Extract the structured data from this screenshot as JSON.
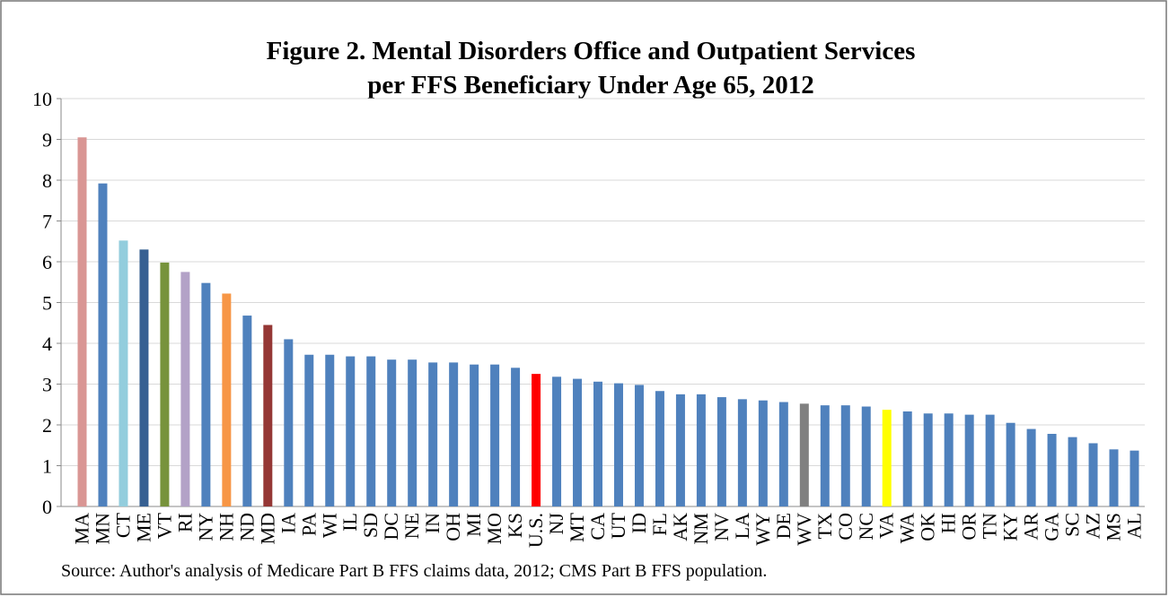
{
  "chart_data": {
    "type": "bar",
    "title": [
      "Figure 2. Mental Disorders Office and Outpatient Services",
      "per FFS Beneficiary Under Age 65, 2012"
    ],
    "source": "Source: Author's analysis of Medicare Part B FFS claims data, 2012; CMS Part B FFS population.",
    "categories": [
      "MA",
      "MN",
      "CT",
      "ME",
      "VT",
      "RI",
      "NY",
      "NH",
      "ND",
      "MD",
      "IA",
      "PA",
      "WI",
      "IL",
      "SD",
      "DC",
      "NE",
      "IN",
      "OH",
      "MI",
      "MO",
      "KS",
      "U.S.",
      "NJ",
      "MT",
      "CA",
      "UT",
      "ID",
      "FL",
      "AK",
      "NM",
      "NV",
      "LA",
      "WY",
      "DE",
      "WV",
      "TX",
      "CO",
      "NC",
      "VA",
      "WA",
      "OK",
      "HI",
      "OR",
      "TN",
      "KY",
      "AR",
      "GA",
      "SC",
      "AZ",
      "MS",
      "AL"
    ],
    "values": [
      9.05,
      7.92,
      6.52,
      6.3,
      5.98,
      5.75,
      5.48,
      5.22,
      4.68,
      4.45,
      4.1,
      3.72,
      3.72,
      3.68,
      3.68,
      3.6,
      3.6,
      3.53,
      3.53,
      3.48,
      3.48,
      3.4,
      3.25,
      3.18,
      3.13,
      3.06,
      3.02,
      2.98,
      2.83,
      2.75,
      2.75,
      2.68,
      2.63,
      2.6,
      2.56,
      2.52,
      2.48,
      2.48,
      2.45,
      2.37,
      2.33,
      2.28,
      2.28,
      2.25,
      2.25,
      2.05,
      1.9,
      1.78,
      1.7,
      1.55,
      1.4,
      1.37
    ],
    "color": "#4f81bd",
    "colors": [
      "#d99694",
      "#4f81bd",
      "#93cddd",
      "#376092",
      "#77933c",
      "#b3a2c7",
      "#4f81bd",
      "#f79646",
      "#4f81bd",
      "#953735",
      "#4f81bd",
      "#4f81bd",
      "#4f81bd",
      "#4f81bd",
      "#4f81bd",
      "#4f81bd",
      "#4f81bd",
      "#4f81bd",
      "#4f81bd",
      "#4f81bd",
      "#4f81bd",
      "#4f81bd",
      "#ff0000",
      "#4f81bd",
      "#4f81bd",
      "#4f81bd",
      "#4f81bd",
      "#4f81bd",
      "#4f81bd",
      "#4f81bd",
      "#4f81bd",
      "#4f81bd",
      "#4f81bd",
      "#4f81bd",
      "#4f81bd",
      "#808080",
      "#4f81bd",
      "#4f81bd",
      "#4f81bd",
      "#ffff00",
      "#4f81bd",
      "#4f81bd",
      "#4f81bd",
      "#4f81bd",
      "#4f81bd",
      "#4f81bd",
      "#4f81bd",
      "#4f81bd",
      "#4f81bd",
      "#4f81bd",
      "#4f81bd",
      "#4f81bd"
    ],
    "ylim": [
      0,
      10
    ],
    "yticks": [
      0,
      1,
      2,
      3,
      4,
      5,
      6,
      7,
      8,
      9,
      10
    ],
    "grid": true
  }
}
